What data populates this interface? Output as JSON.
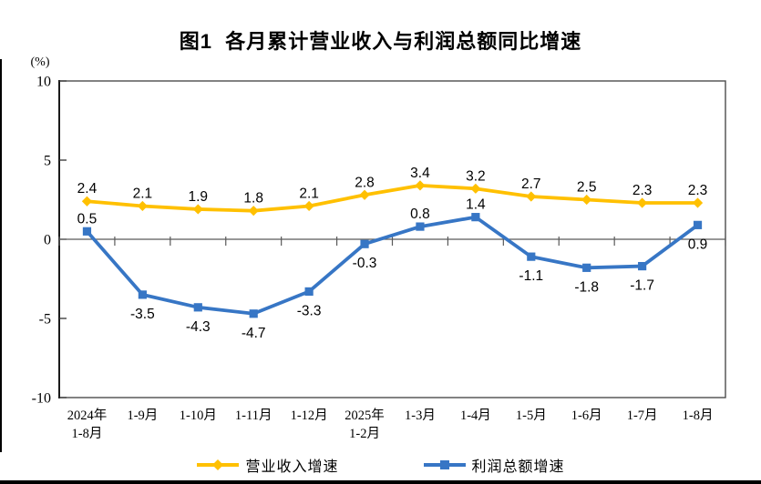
{
  "page": {
    "title": "图1  各月累计营业收入与利润总额同比增速",
    "unit_label": "(%)"
  },
  "chart_data": {
    "type": "line",
    "title": "图1  各月累计营业收入与利润总额同比增速",
    "ylabel": "(%)",
    "xlabel": "",
    "ylim": [
      -10,
      10
    ],
    "yticks": [
      10,
      5,
      0,
      -5,
      -10
    ],
    "grid": false,
    "legend_position": "bottom",
    "categories": [
      "2024年\n1-8月",
      "1-9月",
      "1-10月",
      "1-11月",
      "1-12月",
      "2025年\n1-2月",
      "1-3月",
      "1-4月",
      "1-5月",
      "1-6月",
      "1-7月",
      "1-8月"
    ],
    "series": [
      {
        "name": "营业收入增速",
        "color": "#FFC000",
        "marker": "diamond",
        "values": [
          2.4,
          2.1,
          1.9,
          1.8,
          2.1,
          2.8,
          3.4,
          3.2,
          2.7,
          2.5,
          2.3,
          2.3
        ],
        "label_positions": [
          "above",
          "above",
          "above",
          "above",
          "above",
          "above",
          "above",
          "above",
          "above",
          "above",
          "above",
          "above"
        ]
      },
      {
        "name": "利润总额增速",
        "color": "#3776C5",
        "marker": "square",
        "values": [
          0.5,
          -3.5,
          -4.3,
          -4.7,
          -3.3,
          -0.3,
          0.8,
          1.4,
          -1.1,
          -1.8,
          -1.7,
          0.9
        ],
        "label_positions": [
          "above",
          "below",
          "below",
          "below",
          "below",
          "below",
          "above",
          "above",
          "below",
          "below",
          "below",
          "below"
        ]
      }
    ]
  }
}
